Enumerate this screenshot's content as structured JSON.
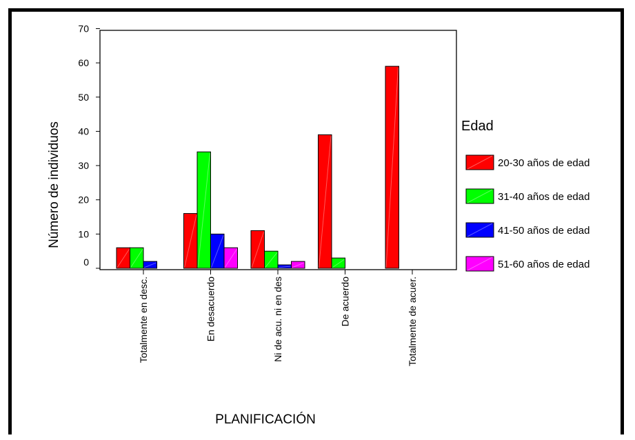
{
  "chart_data": {
    "type": "bar",
    "categories": [
      "Totalmente en desc.",
      "En desacuerdo",
      "Ni de acu. ni en des",
      "De acuerdo",
      "Totalmente de acuer."
    ],
    "series": [
      {
        "name": "20-30 años de edad",
        "color": "#ff0000",
        "values": [
          6,
          16,
          11,
          39,
          59
        ]
      },
      {
        "name": "31-40 años de edad",
        "color": "#00ff00",
        "values": [
          6,
          34,
          5,
          3,
          0
        ]
      },
      {
        "name": "41-50 años de edad",
        "color": "#0000ff",
        "values": [
          2,
          10,
          1,
          0,
          0
        ]
      },
      {
        "name": "51-60 años de edad",
        "color": "#ff00ff",
        "values": [
          0,
          6,
          2,
          0,
          0
        ]
      }
    ],
    "xlabel": "PLANIFICACIÓN",
    "ylabel": "Número de individuos",
    "legend_title": "Edad",
    "legend_placement": "right",
    "ylim": [
      0,
      70
    ],
    "yticks": [
      0,
      10,
      20,
      30,
      40,
      50,
      60,
      70
    ],
    "grid": false
  }
}
